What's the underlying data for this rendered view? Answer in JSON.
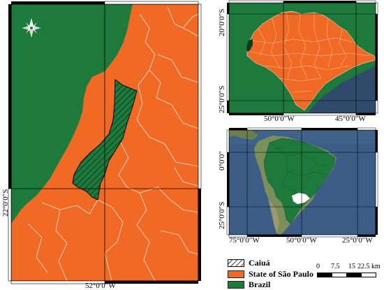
{
  "colors": {
    "brazil": "#1d7a3c",
    "sao_paulo": "#f06a25",
    "caiua_hatch": "#0f5a2a",
    "ocean_dark": "#2f4a6b",
    "ocean_sat": "#3b5d86",
    "land_sat": "#7a8f5b",
    "frame_black": "#000000"
  },
  "main_map": {
    "north_arrow": "compass-rose",
    "label_left": "22°0′0″S",
    "label_bottom": "52°0′0″W"
  },
  "state_map": {
    "label_lat_top": "20°0′0″S",
    "label_lat_bottom": "25°0′0″S",
    "label_lon_left": "50°0′0″W",
    "label_lon_right": "45°0′0″W"
  },
  "continent_map": {
    "label_lat_top": "0°0′0″",
    "label_lat_bottom": "25°0′0″S",
    "label_lon_left": "75°0′0″W",
    "label_lon_mid": "50°0′0″W",
    "label_lon_right": "25°0′0″W"
  },
  "legend": {
    "items": [
      {
        "label": "Caiuá",
        "pattern": "hatch"
      },
      {
        "label": "State of São Paulo",
        "color": "#f06a25"
      },
      {
        "label": "Brazil",
        "color": "#1d7a3c"
      }
    ]
  },
  "scale_bar": {
    "ticks": [
      "0",
      "7.5",
      "15",
      "22.5 km"
    ]
  }
}
